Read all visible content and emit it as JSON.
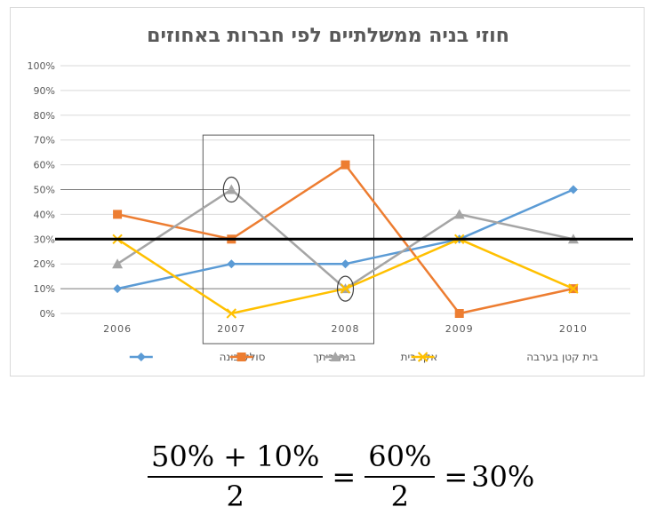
{
  "chart_data": {
    "type": "line",
    "title": "חוזי בניה ממשלתיים לפי חברות באחוזים",
    "categories": [
      "2006",
      "2007",
      "2008",
      "2009",
      "2010"
    ],
    "y_ticks": [
      "0%",
      "10%",
      "20%",
      "30%",
      "40%",
      "50%",
      "60%",
      "70%",
      "80%",
      "90%",
      "100%"
    ],
    "ylim": [
      0,
      100
    ],
    "grid": true,
    "legend_position": "bottom",
    "series": [
      {
        "name": "סולל-בונה",
        "values": [
          10,
          20,
          20,
          30,
          50
        ],
        "color": "#5b9bd5",
        "marker": "diamond"
      },
      {
        "name": "בנה-ביתך",
        "values": [
          40,
          30,
          60,
          0,
          10
        ],
        "color": "#ed7d31",
        "marker": "square"
      },
      {
        "name": "אקו-בית",
        "values": [
          20,
          50,
          10,
          40,
          30
        ],
        "color": "#a5a5a5",
        "marker": "triangle"
      },
      {
        "name": "בית קטן בערבה",
        "values": [
          30,
          0,
          10,
          30,
          10
        ],
        "color": "#ffc000",
        "marker": "x"
      }
    ],
    "annotations": {
      "average_line_value": 30,
      "highlight_categories": [
        "2007",
        "2008"
      ],
      "circled_points": [
        {
          "category": "2007",
          "value": 50
        },
        {
          "category": "2008",
          "value": 10
        }
      ],
      "reference_lines": [
        50,
        10
      ]
    }
  },
  "formula": {
    "num1": "50% + 10%",
    "den1": "2",
    "eq1": "=",
    "num2": "60%",
    "den2": "2",
    "eq2": "=",
    "result": "30%"
  }
}
